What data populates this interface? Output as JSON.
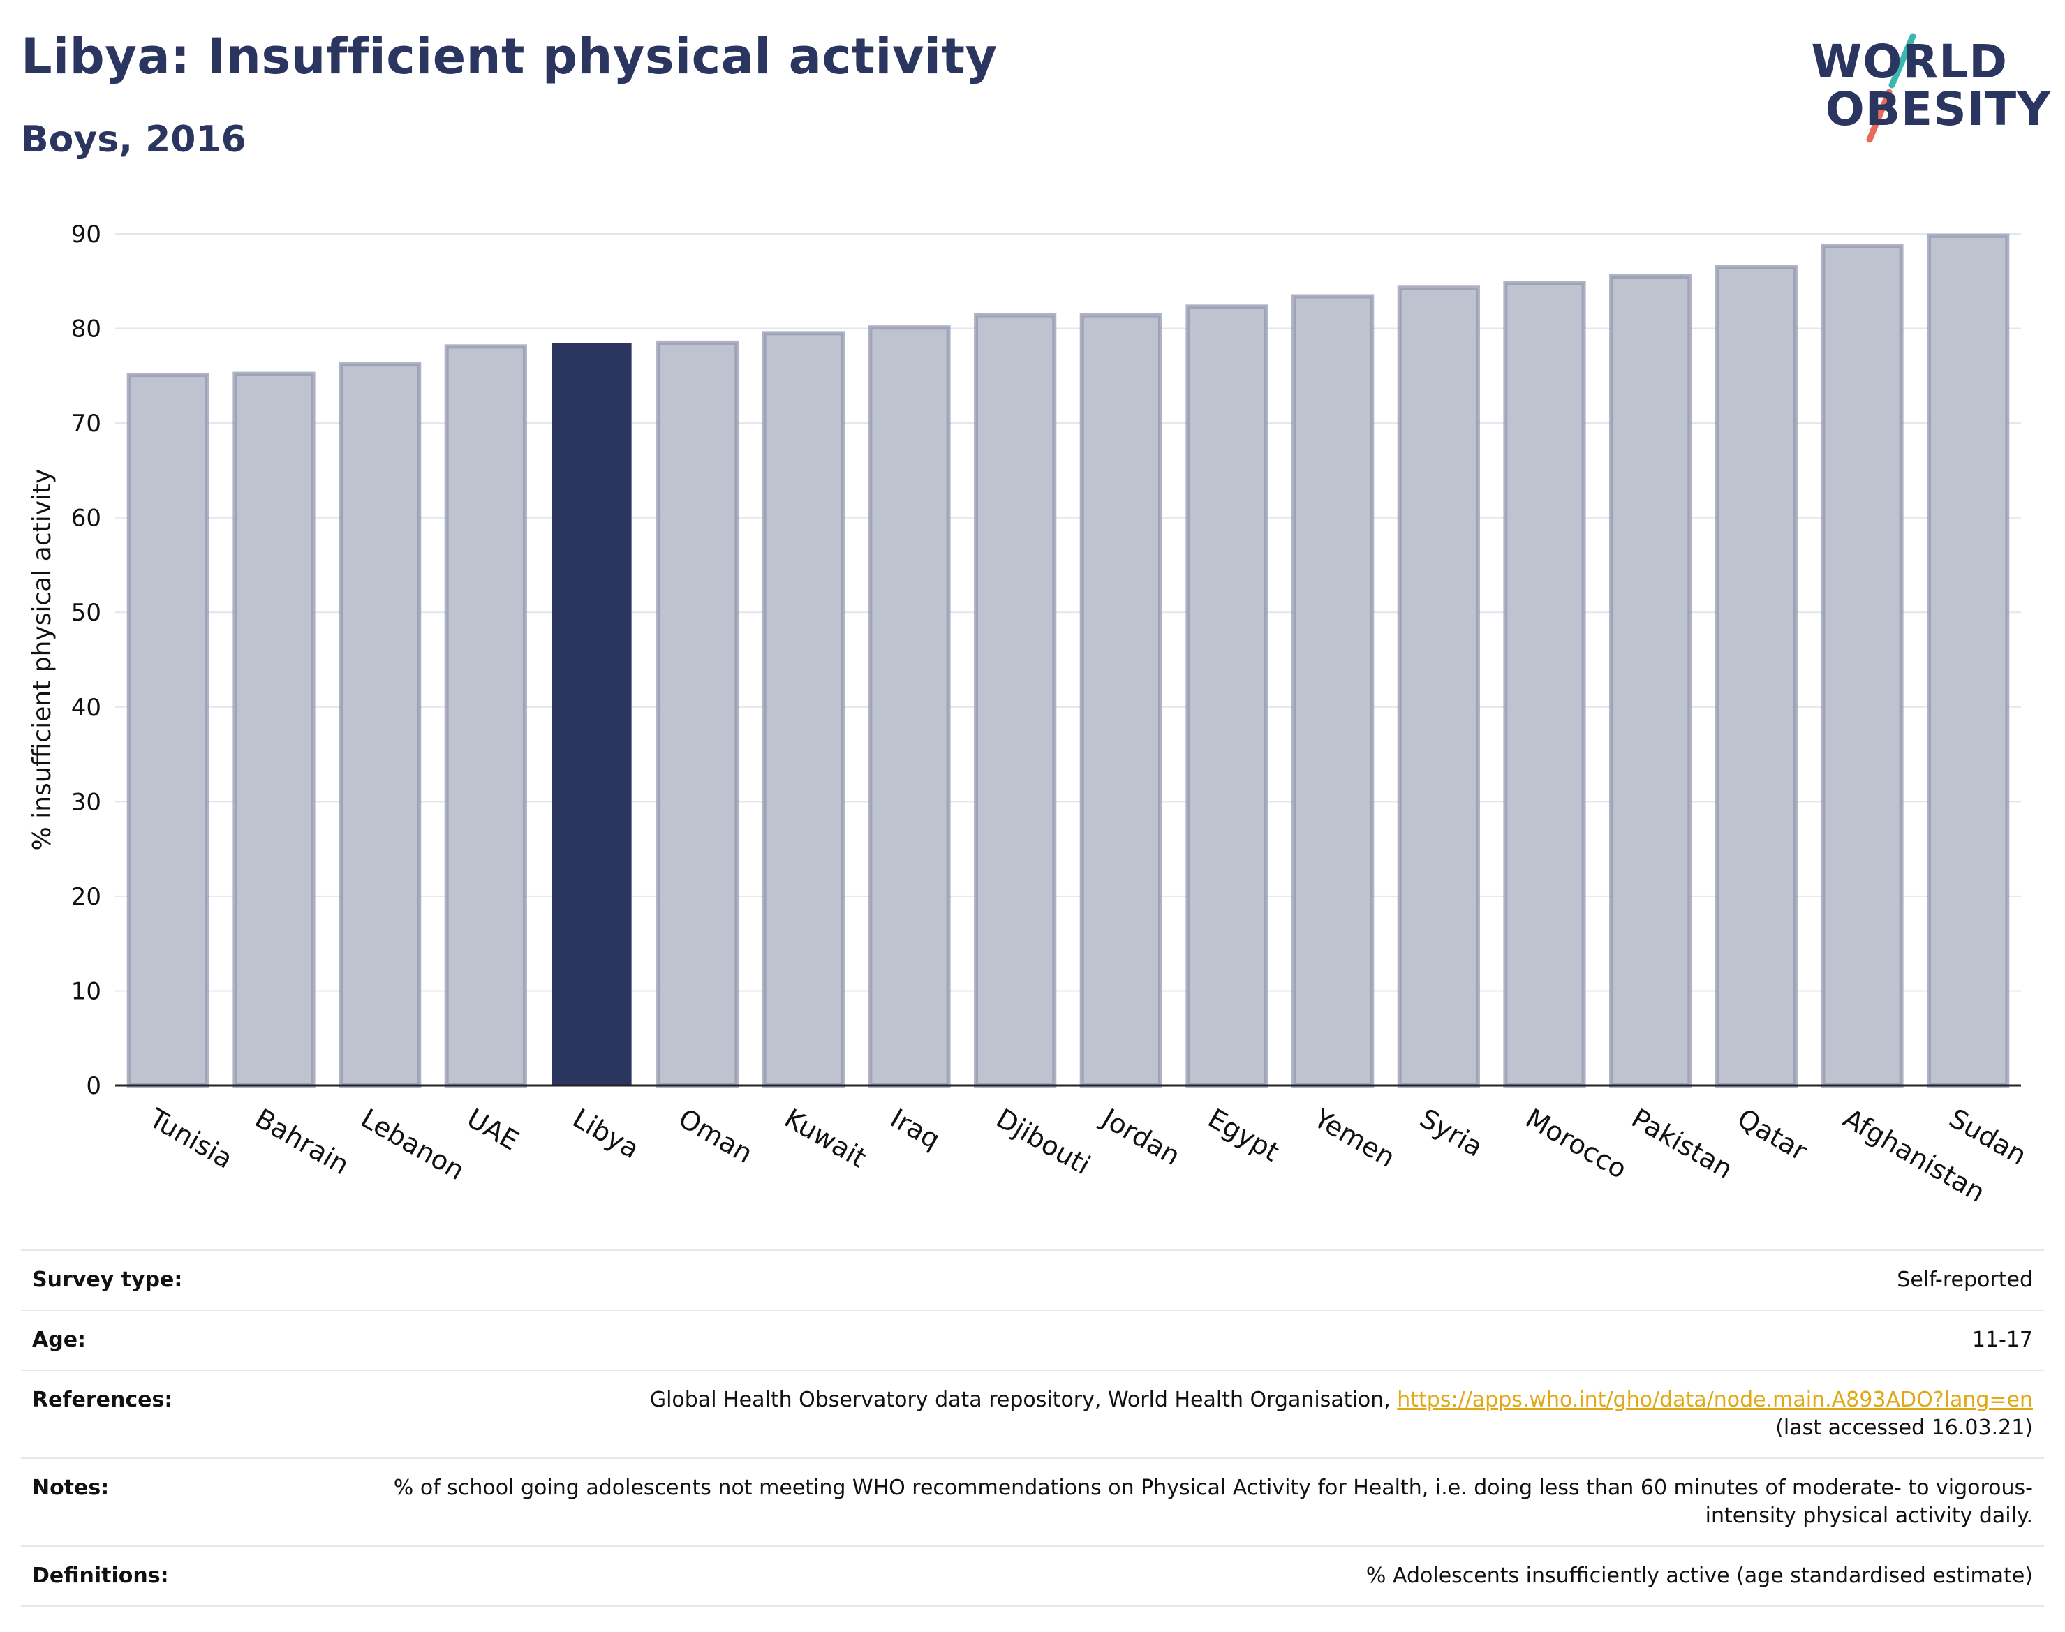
{
  "title": "Libya: Insufficient physical activity",
  "subtitle": "Boys, 2016",
  "logo": {
    "line1": "WORLD",
    "line2": "OBESITY"
  },
  "colors": {
    "highlight": "#2a3560",
    "bar": "#bfc2cf",
    "bar_border": "#9398b0",
    "accent_teal": "#3ab8b0",
    "accent_coral": "#e86a5a",
    "link": "#e0a814"
  },
  "chart_data": {
    "type": "bar",
    "ylabel": "% insufficient physical activity",
    "ylim": [
      0,
      90
    ],
    "yticks": [
      0,
      10,
      20,
      30,
      40,
      50,
      60,
      70,
      80,
      90
    ],
    "grid": true,
    "highlight": "Libya",
    "categories": [
      "Tunisia",
      "Bahrain",
      "Lebanon",
      "UAE",
      "Libya",
      "Oman",
      "Kuwait",
      "Iraq",
      "Djibouti",
      "Jordan",
      "Egypt",
      "Yemen",
      "Syria",
      "Morocco",
      "Pakistan",
      "Qatar",
      "Afghanistan",
      "Sudan"
    ],
    "values": [
      75.1,
      75.2,
      76.2,
      78.1,
      78.4,
      78.5,
      79.5,
      80.1,
      81.4,
      81.4,
      82.3,
      83.4,
      84.3,
      84.8,
      85.5,
      86.5,
      88.7,
      89.8
    ]
  },
  "meta": {
    "survey_type_label": "Survey type:",
    "survey_type": "Self-reported",
    "age_label": "Age:",
    "age": "11-17",
    "references_label": "References:",
    "references_text": "Global Health Observatory data repository, World Health Organisation, ",
    "references_link": "https://apps.who.int/gho/data/node.main.A893ADO?lang=en",
    "references_accessed": "(last accessed 16.03.21)",
    "notes_label": "Notes:",
    "notes": "% of school going adolescents not meeting WHO recommendations on Physical Activity for Health, i.e. doing less than 60 minutes of moderate- to vigorous-intensity physical activity daily.",
    "definitions_label": "Definitions:",
    "definitions": "% Adolescents insufficiently active (age standardised estimate)"
  }
}
